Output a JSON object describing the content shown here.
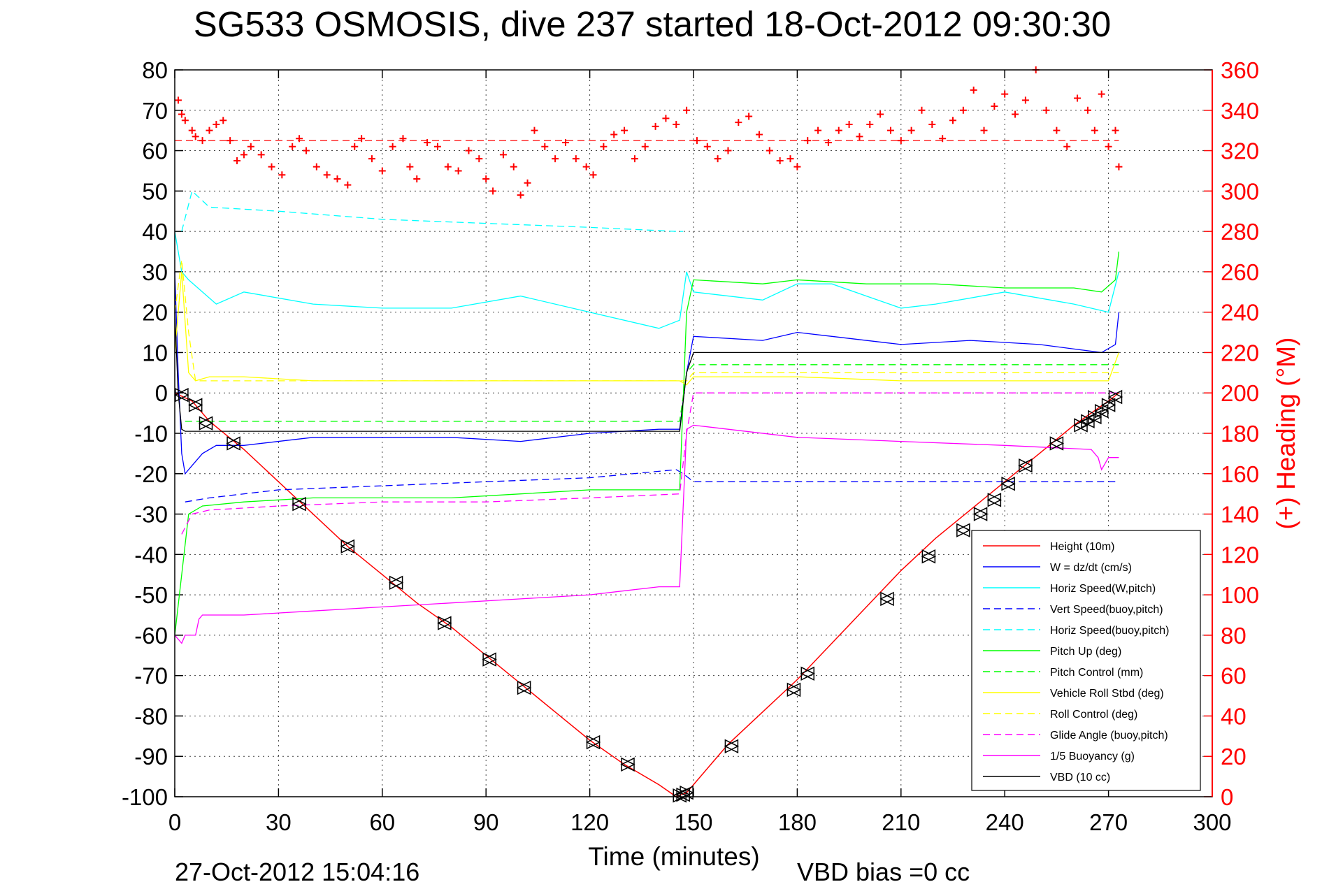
{
  "chart_data": {
    "type": "line",
    "title": "SG533 OSMOSIS, dive 237 started 18-Oct-2012 09:30:30",
    "xlabel": "Time (minutes)",
    "ylabel_right": "(+) Heading (°M)",
    "xlim": [
      0,
      300
    ],
    "ylim": [
      -100,
      80
    ],
    "ylim_right": [
      0,
      360
    ],
    "x_ticks": [
      0,
      30,
      60,
      90,
      120,
      150,
      180,
      210,
      240,
      270,
      300
    ],
    "y_ticks": [
      80,
      70,
      60,
      50,
      40,
      30,
      20,
      10,
      0,
      -10,
      -20,
      -30,
      -40,
      -50,
      -60,
      -70,
      -80,
      -90,
      -100
    ],
    "y_ticks_right": [
      360,
      340,
      320,
      300,
      280,
      260,
      240,
      220,
      200,
      180,
      160,
      140,
      120,
      100,
      80,
      60,
      40,
      20,
      0
    ],
    "grid": true,
    "legend_placement": "bottom-right",
    "footer_left": "27-Oct-2012 15:04:16",
    "footer_right": "VBD bias =0 cc",
    "colors": {
      "axis_right": "#ff0000",
      "height": "#ff0000",
      "w": "#0000ff",
      "horiz": "#00ffff",
      "pitch": "#00ff00",
      "roll": "#ffff00",
      "glide": "#ff00ff",
      "buoy": "#ff00ff",
      "vbd": "#000000"
    },
    "series": [
      {
        "name": "Height (10m)",
        "color": "#ff0000",
        "style": "solid",
        "x": [
          0,
          5,
          10,
          20,
          30,
          40,
          50,
          60,
          70,
          80,
          90,
          100,
          110,
          120,
          130,
          140,
          145,
          148,
          150,
          160,
          170,
          180,
          190,
          200,
          210,
          220,
          230,
          240,
          250,
          260,
          270,
          273
        ],
        "y": [
          0,
          -2,
          -7,
          -14,
          -22,
          -30,
          -38,
          -45,
          -52,
          -58,
          -65,
          -72,
          -79,
          -86,
          -92,
          -97,
          -100,
          -99,
          -97,
          -87,
          -79,
          -71,
          -62,
          -53,
          -44,
          -36,
          -29,
          -22,
          -15,
          -8,
          -2,
          0
        ]
      },
      {
        "name": "W = dz/dt (cm/s)",
        "color": "#0000ff",
        "style": "solid",
        "x": [
          0,
          1,
          2,
          3,
          5,
          8,
          12,
          20,
          40,
          60,
          80,
          100,
          120,
          140,
          146,
          148,
          150,
          170,
          180,
          190,
          210,
          230,
          250,
          268,
          272,
          273
        ],
        "y": [
          30,
          5,
          -15,
          -20,
          -18,
          -15,
          -13,
          -13,
          -11,
          -11,
          -11,
          -12,
          -10,
          -9,
          -9,
          5,
          14,
          13,
          15,
          14,
          12,
          13,
          12,
          10,
          12,
          20
        ]
      },
      {
        "name": "Horiz Speed(W,pitch)",
        "color": "#00ffff",
        "style": "solid",
        "x": [
          0,
          2,
          4,
          8,
          12,
          20,
          40,
          60,
          80,
          100,
          120,
          140,
          146,
          148,
          150,
          170,
          180,
          190,
          200,
          210,
          220,
          240,
          260,
          270,
          273
        ],
        "y": [
          40,
          30,
          28,
          25,
          22,
          25,
          22,
          21,
          21,
          24,
          20,
          16,
          18,
          30,
          25,
          23,
          27,
          27,
          24,
          21,
          22,
          25,
          22,
          20,
          30
        ]
      },
      {
        "name": "Vert Speed(buoy,pitch)",
        "color": "#0000ff",
        "style": "dashed",
        "x": [
          3,
          10,
          30,
          60,
          90,
          120,
          145,
          147,
          150,
          200,
          273
        ],
        "y": [
          -27,
          -26,
          -24,
          -23,
          -22,
          -21,
          -19,
          -20,
          -22,
          -22,
          -22
        ]
      },
      {
        "name": "Horiz Speed(buoy,pitch)",
        "color": "#00ffff",
        "style": "dashed",
        "x": [
          2,
          5,
          10,
          30,
          60,
          90,
          120,
          145,
          147
        ],
        "y": [
          40,
          50,
          46,
          45,
          43,
          42,
          41,
          40,
          40
        ]
      },
      {
        "name": "Pitch Up (deg)",
        "color": "#00ff00",
        "style": "solid",
        "x": [
          0,
          2,
          4,
          8,
          20,
          40,
          60,
          80,
          100,
          120,
          140,
          146,
          148,
          150,
          170,
          180,
          200,
          220,
          240,
          260,
          268,
          272,
          273
        ],
        "y": [
          -60,
          -45,
          -30,
          -28,
          -27,
          -26,
          -26,
          -26,
          -25,
          -24,
          -24,
          -24,
          20,
          28,
          27,
          28,
          27,
          27,
          26,
          26,
          25,
          28,
          35
        ]
      },
      {
        "name": "Pitch Control (mm)",
        "color": "#00ff00",
        "style": "dashed",
        "x": [
          3,
          20,
          60,
          100,
          146,
          148,
          150,
          200,
          273
        ],
        "y": [
          -7,
          -7,
          -7,
          -7,
          -7,
          5,
          7,
          7,
          7
        ]
      },
      {
        "name": "Vehicle Roll Stbd (deg)",
        "color": "#ffff00",
        "style": "solid",
        "x": [
          0,
          2,
          4,
          6,
          10,
          20,
          40,
          60,
          80,
          100,
          120,
          146,
          148,
          150,
          180,
          210,
          240,
          270,
          273
        ],
        "y": [
          10,
          30,
          5,
          3,
          4,
          4,
          3,
          3,
          3,
          3,
          3,
          3,
          2,
          4,
          4,
          3,
          3,
          3,
          10
        ]
      },
      {
        "name": "Roll Control (deg)",
        "color": "#ffff00",
        "style": "dashed",
        "x": [
          0,
          2,
          4,
          6,
          10,
          30,
          60,
          90,
          120,
          146,
          148,
          150,
          200,
          273
        ],
        "y": [
          20,
          33,
          15,
          3,
          3,
          3,
          3,
          3,
          3,
          3,
          3,
          5,
          5,
          5
        ]
      },
      {
        "name": "Glide Angle (buoy,pitch)",
        "color": "#ff00ff",
        "style": "dashed",
        "x": [
          2,
          5,
          10,
          30,
          60,
          90,
          120,
          146,
          148,
          150,
          200,
          273
        ],
        "y": [
          -35,
          -30,
          -29,
          -28,
          -27,
          -27,
          -26,
          -25,
          -10,
          0,
          0,
          0
        ]
      },
      {
        "name": "1/5 Buoyancy (g)",
        "color": "#ff00ff",
        "style": "solid",
        "x": [
          0,
          2,
          3,
          6,
          7,
          8,
          20,
          40,
          60,
          80,
          100,
          120,
          140,
          146,
          148,
          150,
          180,
          210,
          240,
          265,
          267,
          268,
          270,
          273
        ],
        "y": [
          -60,
          -62,
          -60,
          -60,
          -56,
          -55,
          -55,
          -54,
          -53,
          -52,
          -51,
          -50,
          -48,
          -48,
          -9,
          -8,
          -11,
          -12,
          -13,
          -14,
          -16,
          -19,
          -16,
          -16
        ]
      },
      {
        "name": "VBD (10 cc)",
        "color": "#000000",
        "style": "solid",
        "x": [
          0,
          1,
          2,
          3,
          146,
          148,
          150,
          200,
          260,
          273
        ],
        "y": [
          20,
          0,
          -9,
          -9.5,
          -9.5,
          5,
          10,
          10,
          10,
          10
        ]
      },
      {
        "name": "",
        "axis": "right",
        "color": "#ff0000",
        "style": "plus",
        "x": [
          1,
          2,
          3,
          5,
          6,
          8,
          10,
          12,
          14,
          16,
          18,
          20,
          22,
          25,
          28,
          31,
          34,
          36,
          38,
          41,
          44,
          47,
          50,
          52,
          54,
          57,
          60,
          63,
          66,
          68,
          70,
          73,
          76,
          79,
          82,
          85,
          88,
          90,
          92,
          95,
          98,
          100,
          102,
          104,
          107,
          110,
          113,
          116,
          119,
          121,
          124,
          127,
          130,
          133,
          136,
          139,
          142,
          145,
          148,
          151,
          154,
          157,
          160,
          163,
          166,
          169,
          172,
          175,
          178,
          180,
          183,
          186,
          189,
          192,
          195,
          198,
          201,
          204,
          207,
          210,
          213,
          216,
          219,
          222,
          225,
          228,
          231,
          234,
          237,
          240,
          243,
          246,
          249,
          252,
          255,
          258,
          261,
          264,
          266,
          268,
          270,
          272,
          273
        ],
        "y": [
          345,
          338,
          335,
          330,
          327,
          325,
          330,
          333,
          335,
          325,
          315,
          318,
          322,
          318,
          312,
          308,
          322,
          326,
          320,
          312,
          308,
          306,
          303,
          322,
          326,
          316,
          310,
          322,
          326,
          312,
          306,
          324,
          322,
          312,
          310,
          320,
          316,
          306,
          300,
          318,
          312,
          298,
          304,
          330,
          322,
          316,
          324,
          316,
          312,
          308,
          322,
          328,
          330,
          316,
          322,
          332,
          336,
          333,
          340,
          325,
          322,
          316,
          320,
          334,
          337,
          328,
          320,
          315,
          316,
          312,
          325,
          330,
          324,
          330,
          333,
          327,
          333,
          338,
          330,
          325,
          330,
          340,
          333,
          326,
          335,
          340,
          350,
          330,
          342,
          348,
          338,
          345,
          360,
          340,
          330,
          322,
          346,
          340,
          330,
          348,
          322,
          330,
          312
        ]
      },
      {
        "name": "",
        "axis": "right",
        "color": "#ff0000",
        "style": "dashed",
        "x": [
          0,
          273
        ],
        "y": [
          325,
          325
        ]
      }
    ],
    "markers": {
      "type": "triangles",
      "color": "#000000",
      "x": [
        2,
        6,
        9,
        17,
        36,
        50,
        64,
        78,
        91,
        101,
        121,
        131,
        146,
        147,
        148,
        161,
        179,
        183,
        206,
        218,
        228,
        233,
        237,
        241,
        246,
        255,
        262,
        264,
        266,
        268,
        270,
        272
      ],
      "y": [
        -0.5,
        -3,
        -7.5,
        -12.5,
        -27.5,
        -38,
        -47,
        -57,
        -66,
        -73,
        -86.5,
        -92,
        -99.7,
        -99.5,
        -99,
        -87.5,
        -73.5,
        -69.5,
        -51,
        -40.5,
        -34,
        -30,
        -26.5,
        -22.5,
        -18,
        -12.5,
        -8,
        -7,
        -6,
        -4.5,
        -3,
        -1
      ]
    }
  }
}
